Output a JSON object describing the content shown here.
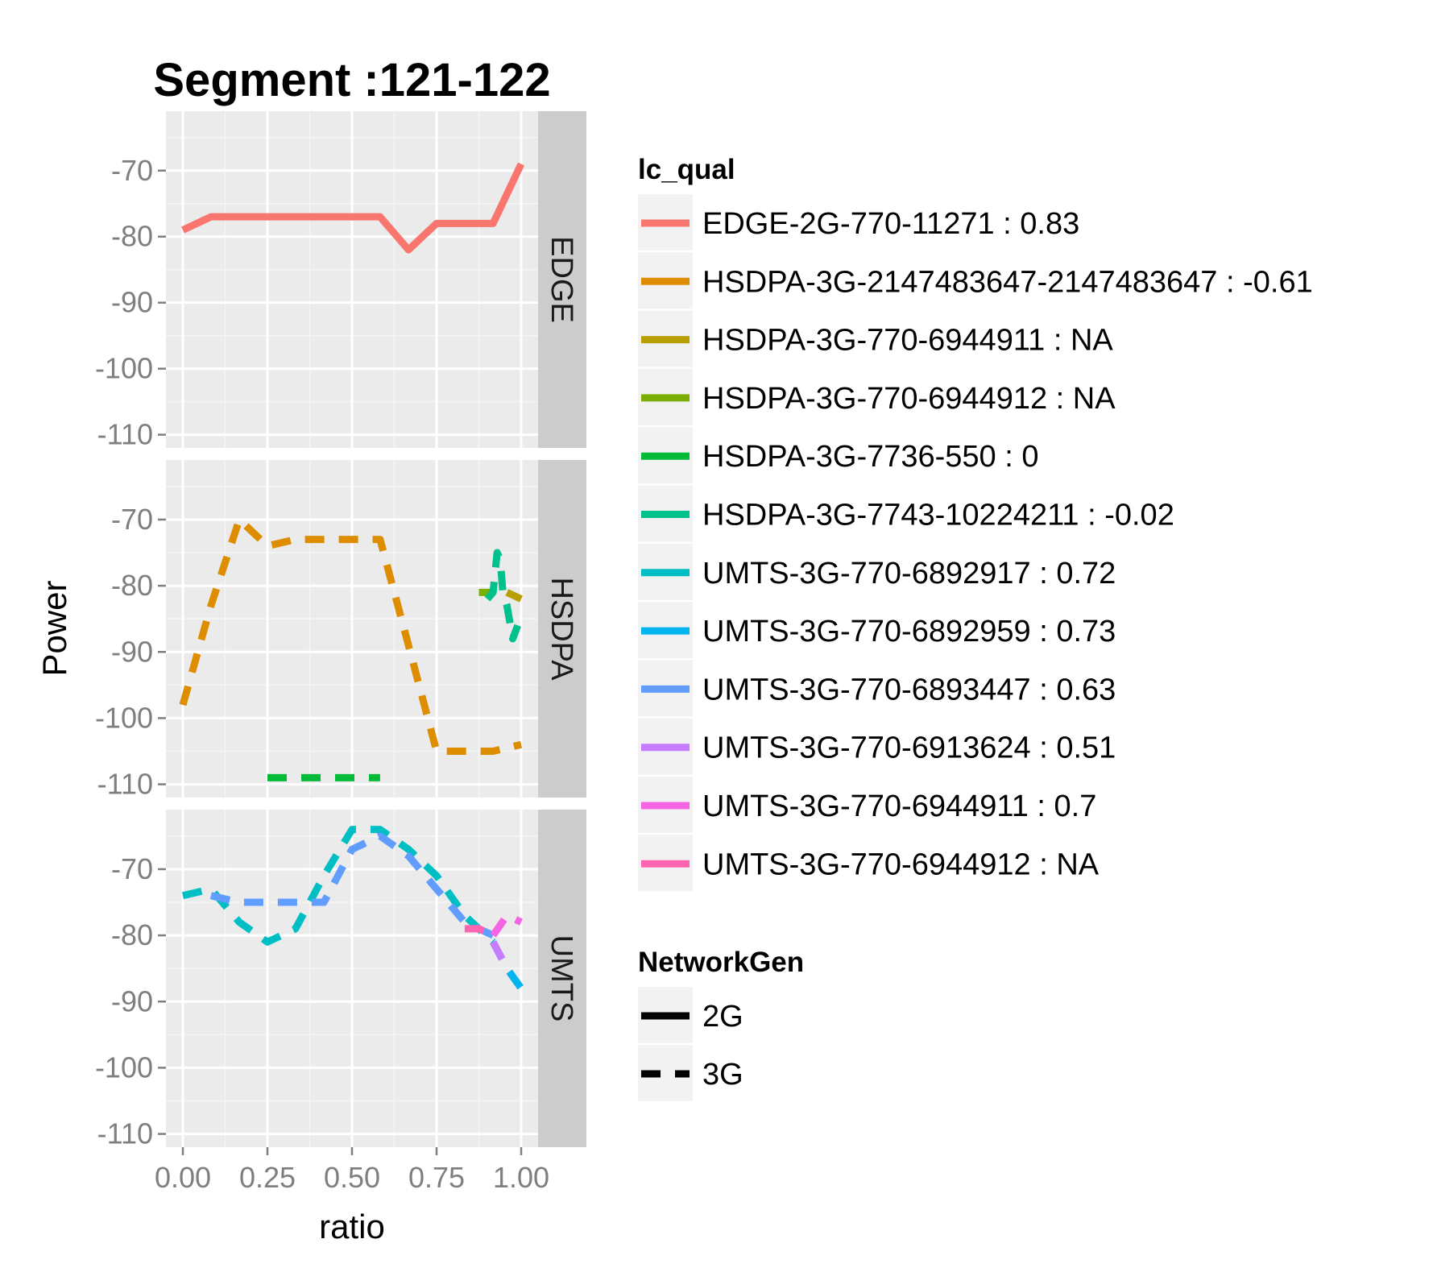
{
  "chart_data": {
    "type": "line",
    "title": "Segment :121-122",
    "xlabel": "ratio",
    "ylabel": "Power",
    "xlim": [
      -0.05,
      1.05
    ],
    "ylim": [
      -112,
      -61
    ],
    "x_ticks": [
      "0.00",
      "0.25",
      "0.50",
      "0.75",
      "1.00"
    ],
    "x_tick_values": [
      0,
      0.25,
      0.5,
      0.75,
      1.0
    ],
    "y_ticks": [
      "-70",
      "-80",
      "-90",
      "-100",
      "-110"
    ],
    "y_tick_values": [
      -70,
      -80,
      -90,
      -100,
      -110
    ],
    "grid": true,
    "legend_position": "right",
    "panel_background": "#ebebeb",
    "strip_background": "#cccccc",
    "facets": [
      "EDGE",
      "HSDPA",
      "UMTS"
    ],
    "color_legend": {
      "title": "lc_qual",
      "entries": [
        {
          "label": "EDGE-2G-770-11271 : 0.83",
          "color": "#F8766D"
        },
        {
          "label": "HSDPA-3G-2147483647-2147483647 : -0.61",
          "color": "#DE8C00"
        },
        {
          "label": "HSDPA-3G-770-6944911 : NA",
          "color": "#B79F00"
        },
        {
          "label": "HSDPA-3G-770-6944912 : NA",
          "color": "#7CAE00"
        },
        {
          "label": "HSDPA-3G-7736-550 : 0",
          "color": "#00BA38"
        },
        {
          "label": "HSDPA-3G-7743-10224211 : -0.02",
          "color": "#00C08B"
        },
        {
          "label": "UMTS-3G-770-6892917 : 0.72",
          "color": "#00BFC4"
        },
        {
          "label": "UMTS-3G-770-6892959 : 0.73",
          "color": "#00B4F0"
        },
        {
          "label": "UMTS-3G-770-6893447 : 0.63",
          "color": "#619CFF"
        },
        {
          "label": "UMTS-3G-770-6913624 : 0.51",
          "color": "#C77CFF"
        },
        {
          "label": "UMTS-3G-770-6944911 : 0.7",
          "color": "#F564E3"
        },
        {
          "label": "UMTS-3G-770-6944912 : NA",
          "color": "#FF64B0"
        }
      ]
    },
    "linetype_legend": {
      "title": "NetworkGen",
      "entries": [
        {
          "label": "2G",
          "linetype": "solid"
        },
        {
          "label": "3G",
          "linetype": "dashed"
        }
      ]
    },
    "series": [
      {
        "facet": "EDGE",
        "color_index": 0,
        "linetype": "solid",
        "x": [
          0.0,
          0.083,
          0.167,
          0.25,
          0.333,
          0.417,
          0.5,
          0.583,
          0.667,
          0.75,
          0.833,
          0.917,
          1.0
        ],
        "y": [
          -79,
          -77,
          -77,
          -77,
          -77,
          -77,
          -77,
          -77,
          -82,
          -78,
          -78,
          -78,
          -69
        ]
      },
      {
        "facet": "HSDPA",
        "color_index": 1,
        "linetype": "dashed",
        "x": [
          0.0,
          0.083,
          0.167,
          0.25,
          0.333,
          0.417,
          0.5,
          0.583,
          0.667,
          0.75,
          0.833,
          0.917,
          1.0
        ],
        "y": [
          -98,
          -83,
          -70,
          -74,
          -73,
          -73,
          -73,
          -73,
          -89,
          -105,
          -105,
          -105,
          -104
        ]
      },
      {
        "facet": "HSDPA",
        "color_index": 2,
        "linetype": "dashed",
        "x": [
          0.958,
          1.0
        ],
        "y": [
          -81,
          -82
        ]
      },
      {
        "facet": "HSDPA",
        "color_index": 3,
        "linetype": "dashed",
        "x": [
          0.875,
          0.917
        ],
        "y": [
          -81,
          -81
        ]
      },
      {
        "facet": "HSDPA",
        "color_index": 4,
        "linetype": "dashed",
        "x": [
          0.25,
          0.333,
          0.417,
          0.5,
          0.583
        ],
        "y": [
          -109,
          -109,
          -109,
          -109,
          -109
        ]
      },
      {
        "facet": "HSDPA",
        "color_index": 5,
        "linetype": "dashed",
        "x": [
          0.9,
          0.917,
          0.929,
          0.938,
          0.946,
          0.958,
          0.975,
          0.99
        ],
        "y": [
          -82,
          -81,
          -75,
          -76,
          -81,
          -83,
          -88,
          -86
        ]
      },
      {
        "facet": "UMTS",
        "color_index": 6,
        "linetype": "dashed",
        "x": [
          0.0,
          0.083,
          0.167,
          0.25,
          0.333,
          0.417,
          0.5,
          0.583,
          0.667,
          0.75,
          0.833,
          0.917
        ],
        "y": [
          -74,
          -73,
          -78,
          -81,
          -79,
          -71,
          -64,
          -64,
          -67,
          -71,
          -77,
          -81
        ]
      },
      {
        "facet": "UMTS",
        "color_index": 7,
        "linetype": "dashed",
        "x": [
          0.917,
          0.958,
          1.0
        ],
        "y": [
          -81,
          -85,
          -88
        ]
      },
      {
        "facet": "UMTS",
        "color_index": 8,
        "linetype": "dashed",
        "x": [
          0.083,
          0.167,
          0.25,
          0.333,
          0.417,
          0.5,
          0.583,
          0.667,
          0.75,
          0.833,
          0.917
        ],
        "y": [
          -74,
          -75,
          -75,
          -75,
          -75,
          -67,
          -65,
          -68,
          -73,
          -78,
          -80
        ]
      },
      {
        "facet": "UMTS",
        "color_index": 9,
        "linetype": "dashed",
        "x": [
          0.917,
          0.958
        ],
        "y": [
          -81,
          -85
        ]
      },
      {
        "facet": "UMTS",
        "color_index": 10,
        "linetype": "dashed",
        "x": [
          0.917,
          0.958,
          1.0
        ],
        "y": [
          -80,
          -77,
          -78
        ]
      },
      {
        "facet": "UMTS",
        "color_index": 11,
        "linetype": "dashed",
        "x": [
          0.833,
          0.875,
          0.917
        ],
        "y": [
          -79,
          -79,
          -80
        ]
      }
    ]
  }
}
